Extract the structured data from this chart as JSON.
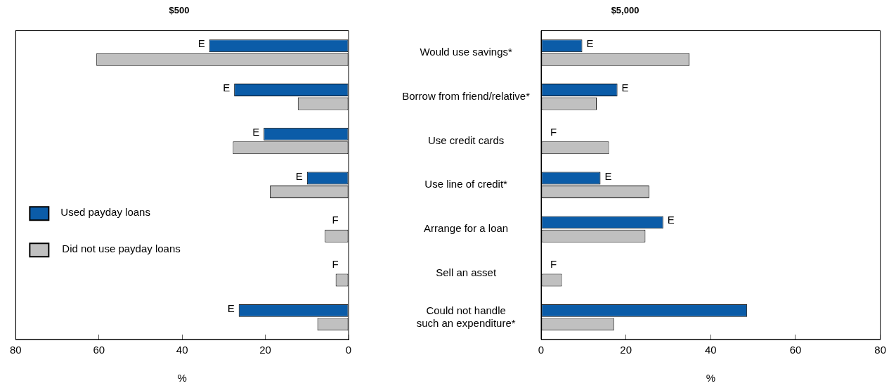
{
  "chart_data": [
    {
      "type": "bar",
      "orientation": "horizontal",
      "title": "$500",
      "xlabel": "%",
      "categories": [
        "Would use savings*",
        "Borrow from friend/relative*",
        "Use credit cards",
        "Use line of credit*",
        "Arrange for a loan",
        "Sell an asset",
        "Could not handle such an expenditure*"
      ],
      "series": [
        {
          "name": "Used payday loans",
          "color": "#0b5ca8",
          "values": [
            33.5,
            27.5,
            20.4,
            10.0,
            null,
            null,
            26.4
          ]
        },
        {
          "name": "Did not use payday loans",
          "color": "#c0c0c0",
          "values": [
            60.6,
            12.2,
            27.8,
            18.9,
            5.7,
            3.1,
            7.5
          ]
        }
      ],
      "xlim": [
        80,
        0
      ],
      "xticks": [
        80,
        60,
        40,
        20,
        0
      ],
      "tick_labels": "x",
      "legend": "left",
      "annotations": [
        {
          "text": "E",
          "x": 33.5,
          "y": "Would use savings*"
        },
        {
          "text": "E",
          "x": 27.5,
          "y": "Borrow from friend/relative*"
        },
        {
          "text": "E",
          "x": 20.4,
          "y": "Use credit cards"
        },
        {
          "text": "E",
          "x": 10.0,
          "y": "Use line of credit*"
        },
        {
          "text": "F",
          "x": 3.2,
          "y": "Arrange for a loan"
        },
        {
          "text": "F",
          "x": 3.2,
          "y": "Sell an asset"
        },
        {
          "text": "E",
          "x": 26.4,
          "y": "Could not handle such an expenditure*"
        }
      ]
    },
    {
      "type": "bar",
      "orientation": "horizontal",
      "title": "$5,000",
      "xlabel": "%",
      "categories": [
        "Would use savings*",
        "Borrow from friend/relative*",
        "Use credit cards",
        "Use line of credit*",
        "Arrange for a loan",
        "Sell an asset",
        "Could not handle such an expenditure*"
      ],
      "series": [
        {
          "color": "#0b5ca8",
          "values": [
            9.7,
            18.0,
            null,
            14.0,
            28.8,
            null,
            48.6
          ]
        },
        {
          "color": "#c0c0c0",
          "values": [
            35.0,
            13.1,
            16.0,
            25.5,
            24.6,
            4.9,
            17.2
          ]
        }
      ],
      "xlim": [
        0,
        80
      ],
      "xticks": [
        0,
        20,
        40,
        60,
        80
      ],
      "annotations": [
        {
          "text": "E",
          "x": 9.7,
          "y": "Would use savings*"
        },
        {
          "text": "E",
          "x": 18.0,
          "y": "Borrow from friend/relative*"
        },
        {
          "text": "F",
          "x": 2.9,
          "y": "Use credit cards"
        },
        {
          "text": "E",
          "x": 14.0,
          "y": "Use line of credit*"
        },
        {
          "text": "E",
          "x": 28.8,
          "y": "Arrange for a loan"
        },
        {
          "text": "F",
          "x": 2.9,
          "y": "Sell an asset"
        }
      ]
    }
  ]
}
